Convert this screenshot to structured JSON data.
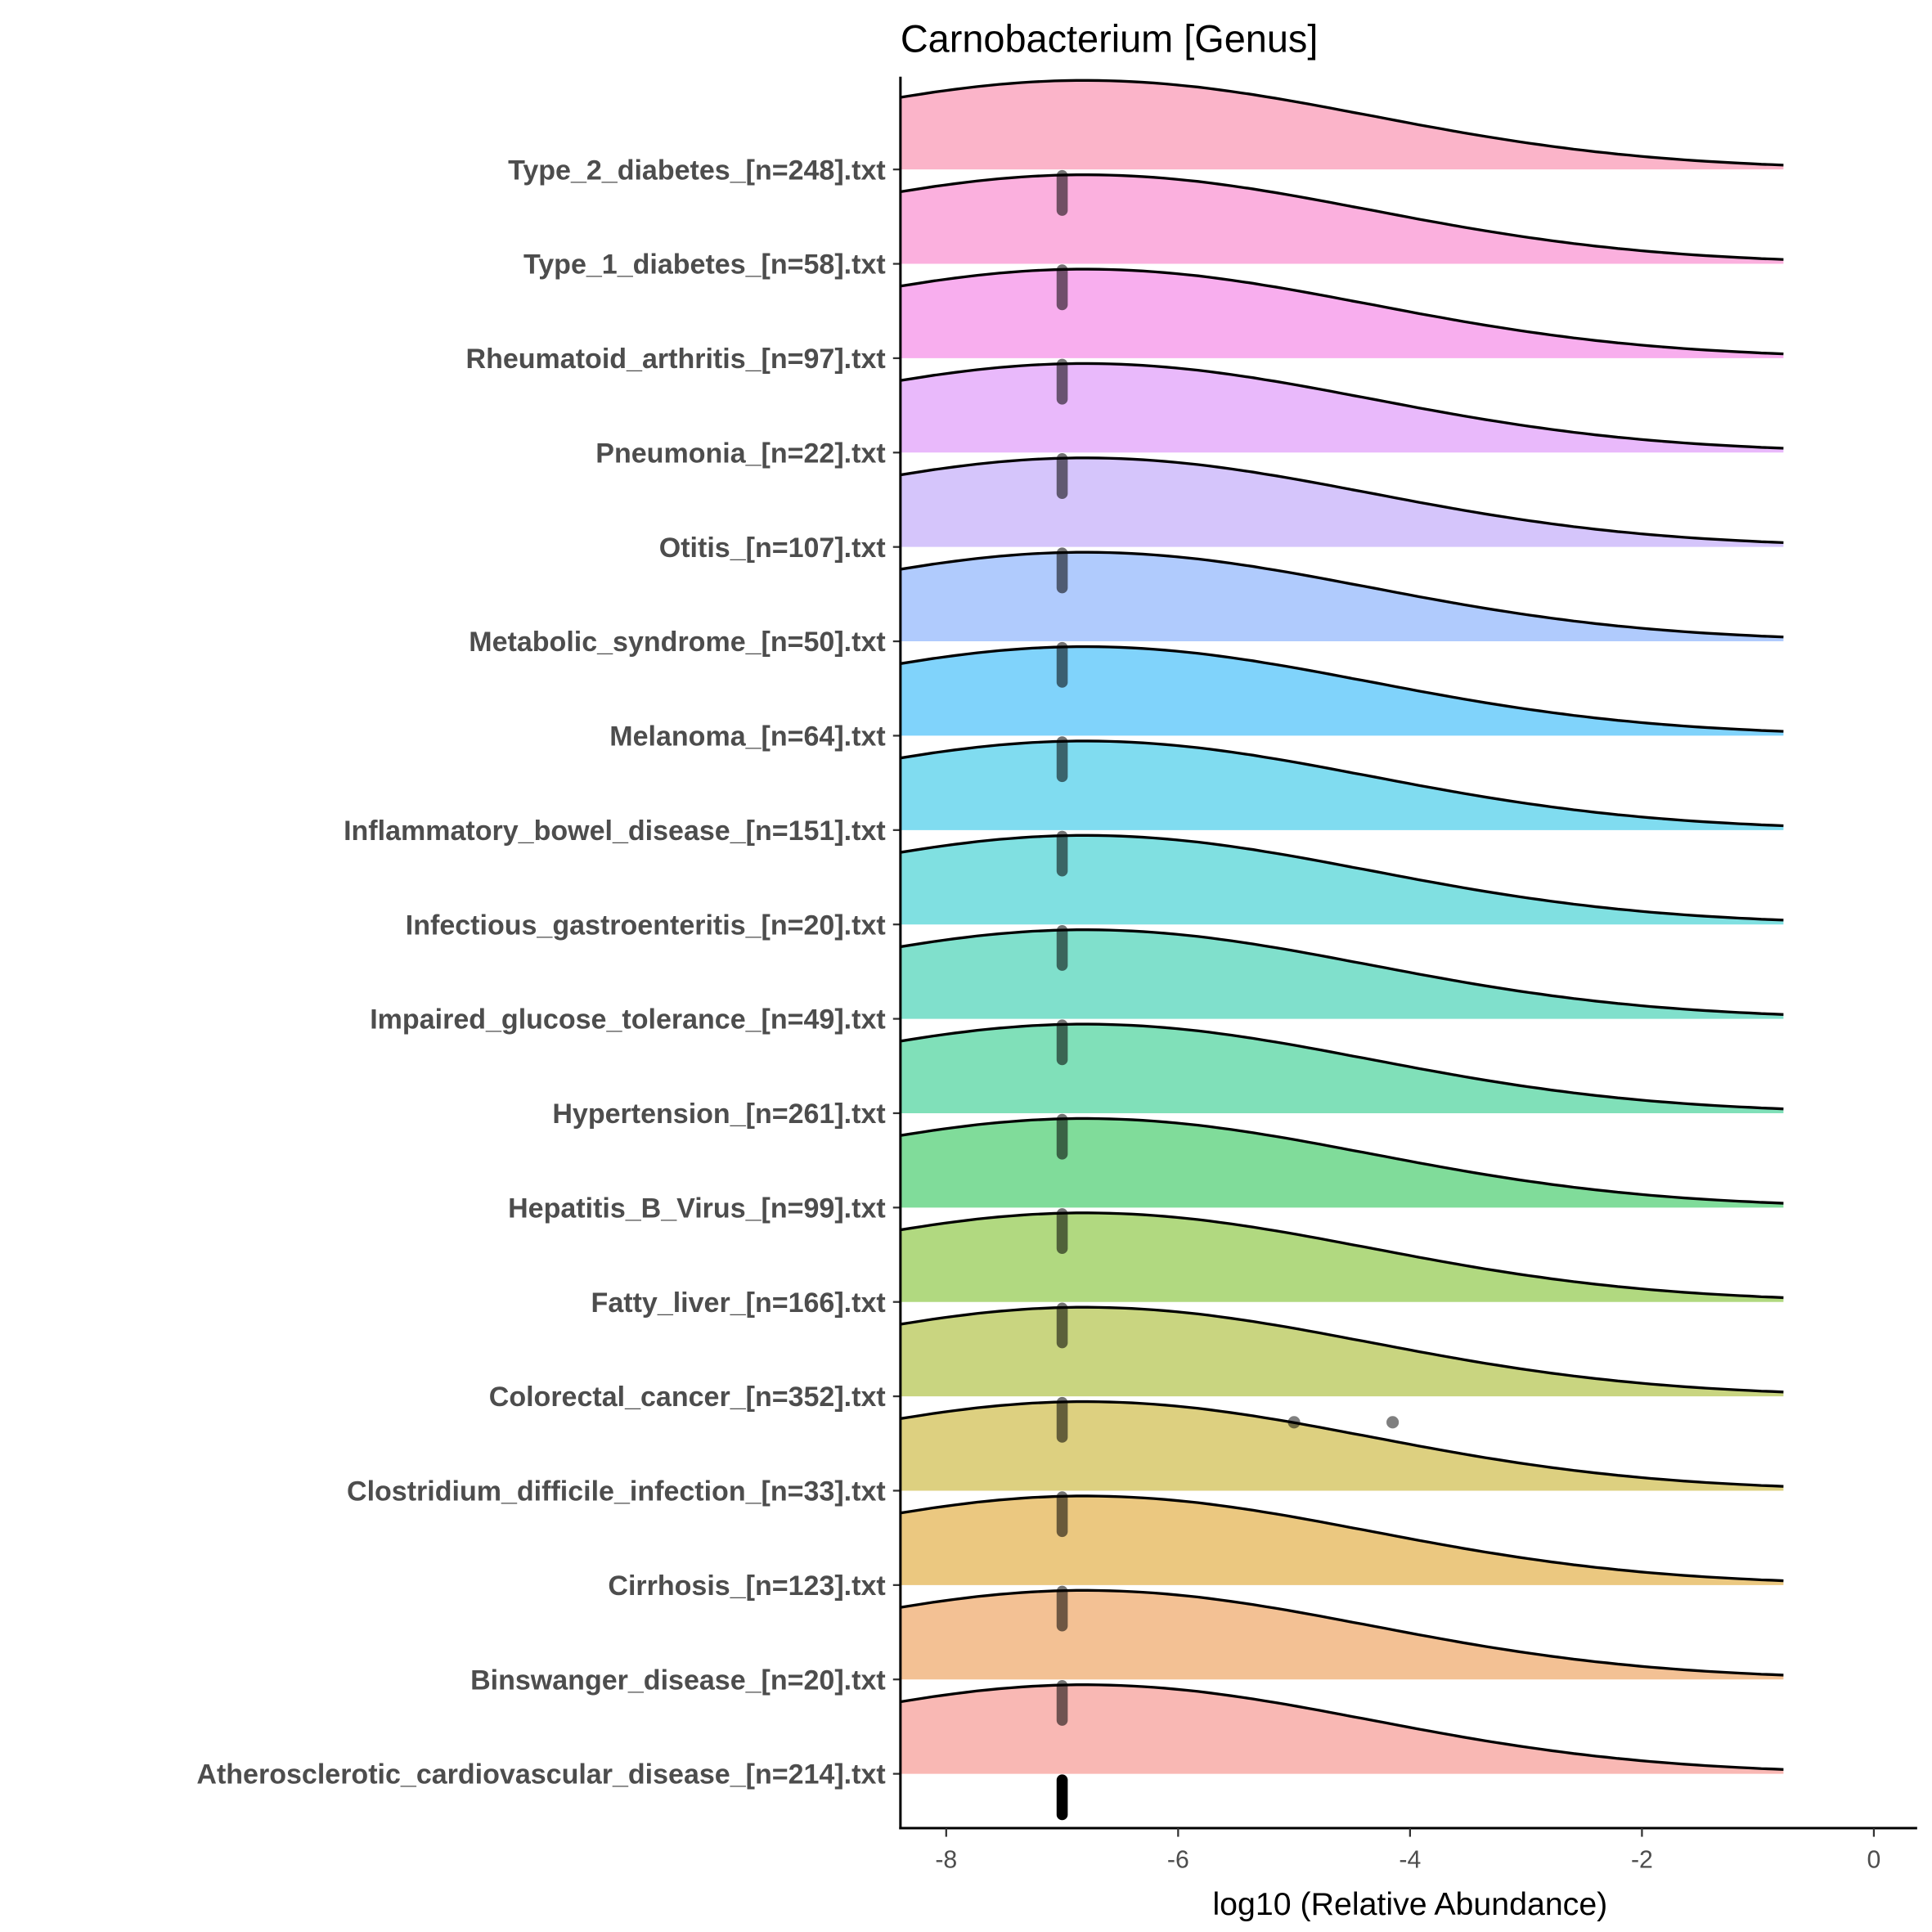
{
  "chart_data": {
    "type": "ridgeline",
    "title": "Carnobacterium [Genus]",
    "xlabel": "log10 (Relative Abundance)",
    "ylabel": "",
    "xlim": [
      -8.4,
      0.4
    ],
    "xticks": [
      -8,
      -6,
      -4,
      -2,
      0
    ],
    "xtick_labels": [
      "-8",
      "-6",
      "-4",
      "-2",
      "0"
    ],
    "density_range": [
      -8.4,
      -0.78
    ],
    "density_mode": -6.8,
    "density_sd": 2.45,
    "grid": false,
    "legend": "none",
    "categories": [
      {
        "label": "Type_2_diabetes_[n=248].txt",
        "color": "#fbb4c9",
        "points_value": -7.0,
        "outliers": []
      },
      {
        "label": "Type_1_diabetes_[n=58].txt",
        "color": "#fbb0de",
        "points_value": -7.0,
        "outliers": []
      },
      {
        "label": "Rheumatoid_arthritis_[n=97].txt",
        "color": "#f8aeee",
        "points_value": -7.0,
        "outliers": []
      },
      {
        "label": "Pneumonia_[n=22].txt",
        "color": "#e9b9fb",
        "points_value": -7.0,
        "outliers": []
      },
      {
        "label": "Otitis_[n=107].txt",
        "color": "#d5c5fb",
        "points_value": -7.0,
        "outliers": []
      },
      {
        "label": "Metabolic_syndrome_[n=50].txt",
        "color": "#b0cbfd",
        "points_value": -7.0,
        "outliers": []
      },
      {
        "label": "Melanoma_[n=64].txt",
        "color": "#80d3fb",
        "points_value": -7.0,
        "outliers": []
      },
      {
        "label": "Inflammatory_bowel_disease_[n=151].txt",
        "color": "#80dcf0",
        "points_value": -7.0,
        "outliers": []
      },
      {
        "label": "Infectious_gastroenteritis_[n=20].txt",
        "color": "#80e0e1",
        "points_value": -7.0,
        "outliers": []
      },
      {
        "label": "Impaired_glucose_tolerance_[n=49].txt",
        "color": "#80e0cc",
        "points_value": -7.0,
        "outliers": []
      },
      {
        "label": "Hypertension_[n=261].txt",
        "color": "#80e0b9",
        "points_value": -7.0,
        "outliers": []
      },
      {
        "label": "Hepatitis_B_Virus_[n=99].txt",
        "color": "#80dc9a",
        "points_value": -7.0,
        "outliers": []
      },
      {
        "label": "Fatty_liver_[n=166].txt",
        "color": "#b1d980",
        "points_value": -7.0,
        "outliers": []
      },
      {
        "label": "Colorectal_cancer_[n=352].txt",
        "color": "#c9d580",
        "points_value": -7.0,
        "outliers": [
          -5.0,
          -4.15
        ]
      },
      {
        "label": "Clostridium_difficile_infection_[n=33].txt",
        "color": "#ddd080",
        "points_value": -7.0,
        "outliers": []
      },
      {
        "label": "Cirrhosis_[n=123].txt",
        "color": "#ebc880",
        "points_value": -7.0,
        "outliers": []
      },
      {
        "label": "Binswanger_disease_[n=20].txt",
        "color": "#f3c194",
        "points_value": -7.0,
        "outliers": []
      },
      {
        "label": "Atherosclerotic_cardiovascular_disease_[n=214].txt",
        "color": "#f9b8b4",
        "points_value": -7.0,
        "outliers": []
      }
    ]
  }
}
